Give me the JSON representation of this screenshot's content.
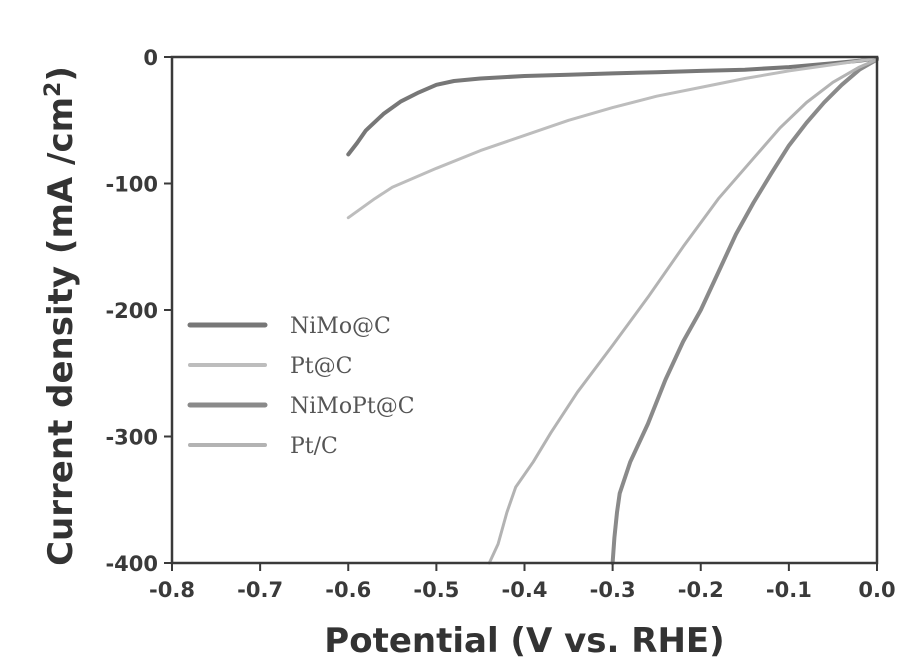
{
  "chart_data": {
    "type": "line",
    "xlabel": "Potential (V vs. RHE)",
    "ylabel": "Current density (mA /cm",
    "ylabel_superscript": "2",
    "ylabel_suffix": ")",
    "xlim": [
      -0.8,
      0.0
    ],
    "ylim": [
      -400,
      0
    ],
    "x_ticks": [
      -0.8,
      -0.7,
      -0.6,
      -0.5,
      -0.4,
      -0.3,
      -0.2,
      -0.1,
      0.0
    ],
    "x_tick_labels": [
      "-0.8",
      "-0.7",
      "-0.6",
      "-0.5",
      "-0.4",
      "-0.3",
      "-0.2",
      "-0.1",
      "0.0"
    ],
    "y_ticks": [
      0,
      -100,
      -200,
      -300,
      -400
    ],
    "y_tick_labels": [
      "0",
      "-100",
      "-200",
      "-300",
      "-400"
    ],
    "grid": false,
    "legend_position": "left-middle",
    "series": [
      {
        "name": "NiMo@C",
        "color": "#777777",
        "width": 4,
        "points": [
          [
            -0.6,
            -77
          ],
          [
            -0.59,
            -68
          ],
          [
            -0.58,
            -58
          ],
          [
            -0.56,
            -45
          ],
          [
            -0.54,
            -35
          ],
          [
            -0.52,
            -28
          ],
          [
            -0.5,
            -22
          ],
          [
            -0.48,
            -19
          ],
          [
            -0.45,
            -17
          ],
          [
            -0.4,
            -15
          ],
          [
            -0.35,
            -14
          ],
          [
            -0.3,
            -13
          ],
          [
            -0.25,
            -12
          ],
          [
            -0.2,
            -11
          ],
          [
            -0.15,
            -10
          ],
          [
            -0.1,
            -8
          ],
          [
            -0.05,
            -5
          ],
          [
            -0.02,
            -3
          ],
          [
            0.0,
            -1
          ]
        ]
      },
      {
        "name": "Pt@C",
        "color": "#bdbdbd",
        "width": 3,
        "points": [
          [
            -0.6,
            -127
          ],
          [
            -0.57,
            -112
          ],
          [
            -0.55,
            -103
          ],
          [
            -0.5,
            -88
          ],
          [
            -0.45,
            -74
          ],
          [
            -0.4,
            -62
          ],
          [
            -0.35,
            -50
          ],
          [
            -0.3,
            -40
          ],
          [
            -0.25,
            -31
          ],
          [
            -0.2,
            -24
          ],
          [
            -0.15,
            -17
          ],
          [
            -0.1,
            -11
          ],
          [
            -0.05,
            -6
          ],
          [
            0.0,
            -1
          ]
        ]
      },
      {
        "name": "NiMoPt@C",
        "color": "#8a8a8a",
        "width": 4,
        "points": [
          [
            -0.3,
            -400
          ],
          [
            -0.298,
            -380
          ],
          [
            -0.295,
            -360
          ],
          [
            -0.292,
            -345
          ],
          [
            -0.28,
            -320
          ],
          [
            -0.26,
            -290
          ],
          [
            -0.24,
            -255
          ],
          [
            -0.22,
            -225
          ],
          [
            -0.2,
            -200
          ],
          [
            -0.18,
            -170
          ],
          [
            -0.16,
            -140
          ],
          [
            -0.14,
            -115
          ],
          [
            -0.12,
            -92
          ],
          [
            -0.1,
            -70
          ],
          [
            -0.08,
            -52
          ],
          [
            -0.06,
            -36
          ],
          [
            -0.04,
            -22
          ],
          [
            -0.02,
            -10
          ],
          [
            0.0,
            -2
          ]
        ]
      },
      {
        "name": "Pt/C",
        "color": "#b3b3b3",
        "width": 3,
        "points": [
          [
            -0.44,
            -400
          ],
          [
            -0.43,
            -385
          ],
          [
            -0.42,
            -360
          ],
          [
            -0.41,
            -340
          ],
          [
            -0.39,
            -320
          ],
          [
            -0.37,
            -297
          ],
          [
            -0.34,
            -265
          ],
          [
            -0.3,
            -228
          ],
          [
            -0.26,
            -190
          ],
          [
            -0.22,
            -150
          ],
          [
            -0.18,
            -112
          ],
          [
            -0.14,
            -80
          ],
          [
            -0.11,
            -56
          ],
          [
            -0.08,
            -36
          ],
          [
            -0.05,
            -20
          ],
          [
            -0.02,
            -8
          ],
          [
            0.0,
            -2
          ]
        ]
      }
    ]
  }
}
